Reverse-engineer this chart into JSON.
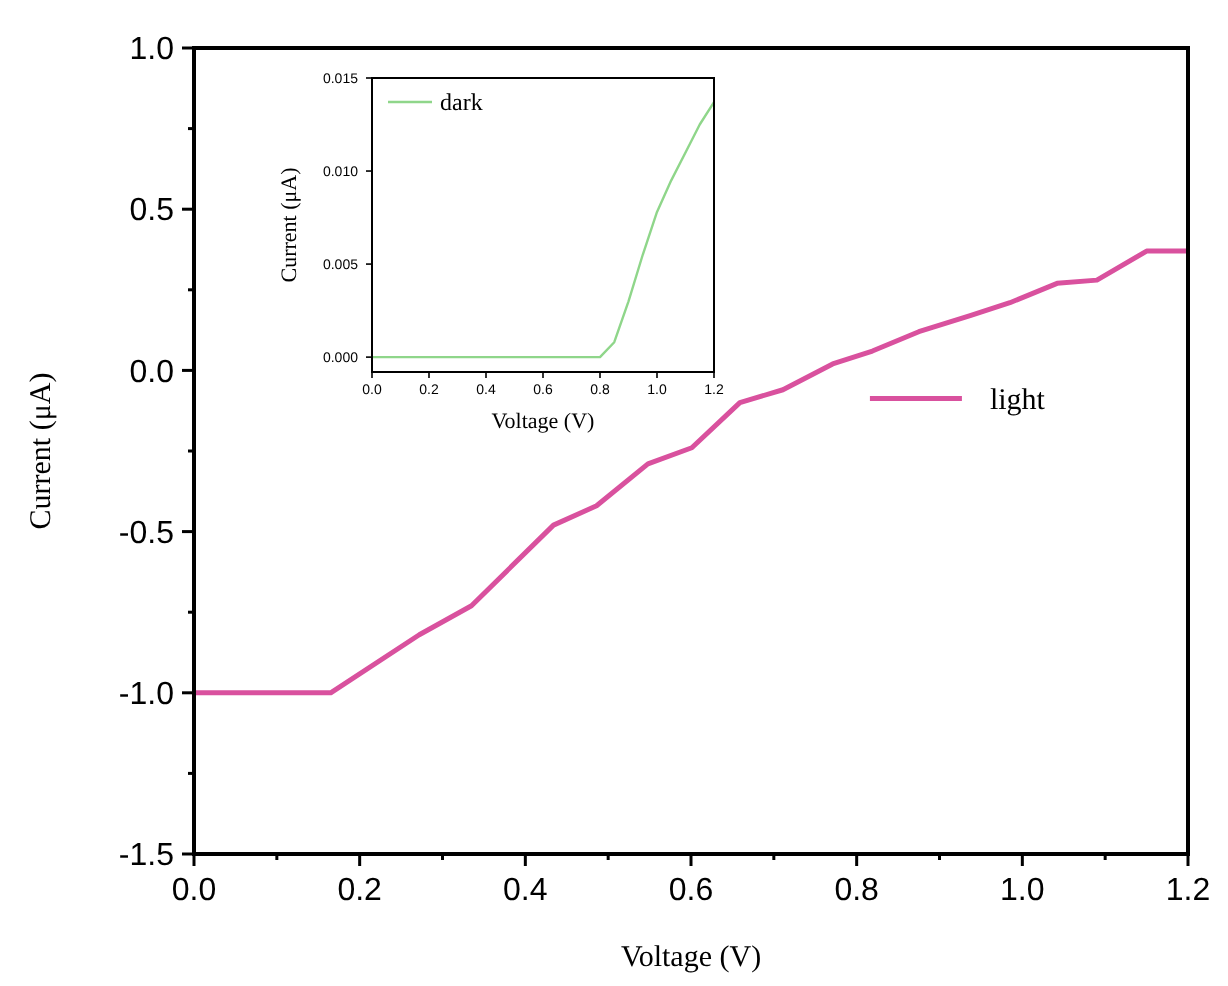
{
  "chart_data": [
    {
      "type": "line",
      "xlabel": "Voltage (V)",
      "ylabel": "Current (μA)",
      "xlim": [
        0,
        1.2
      ],
      "ylim": [
        -1.5,
        1.0
      ],
      "xticks": [
        {
          "value": 0,
          "label": "0.0"
        },
        {
          "value": 0.1,
          "label": null
        },
        {
          "value": 0.2,
          "label": "0.2"
        },
        {
          "value": 0.3,
          "label": null
        },
        {
          "value": 0.4,
          "label": "0.4"
        },
        {
          "value": 0.5,
          "label": null
        },
        {
          "value": 0.6,
          "label": "0.6"
        },
        {
          "value": 0.7,
          "label": null
        },
        {
          "value": 0.8,
          "label": "0.8"
        },
        {
          "value": 0.9,
          "label": null
        },
        {
          "value": 1.0,
          "label": "1.0"
        },
        {
          "value": 1.1,
          "label": null
        },
        {
          "value": 1.2,
          "label": "1.2"
        }
      ],
      "yticks": [
        {
          "value": -1.5,
          "label": "-1.5"
        },
        {
          "value": -1.25,
          "label": null
        },
        {
          "value": -1.0,
          "label": "-1.0"
        },
        {
          "value": -0.75,
          "label": null
        },
        {
          "value": -0.5,
          "label": "-0.5"
        },
        {
          "value": -0.25,
          "label": null
        },
        {
          "value": 0,
          "label": "0.0"
        },
        {
          "value": 0.25,
          "label": null
        },
        {
          "value": 0.5,
          "label": "0.5"
        },
        {
          "value": 0.75,
          "label": null
        },
        {
          "value": 1.0,
          "label": "1.0"
        }
      ],
      "legend": "right",
      "grid": false,
      "series": [
        {
          "name": "light",
          "color": "#d9519e",
          "x": [
            0,
            0.165,
            0.272,
            0.335,
            0.434,
            0.486,
            0.548,
            0.601,
            0.659,
            0.711,
            0.771,
            0.819,
            0.875,
            0.937,
            0.985,
            1.042,
            1.09,
            1.15,
            1.2
          ],
          "values": [
            -1.0,
            -1.0,
            -0.82,
            -0.73,
            -0.48,
            -0.42,
            -0.29,
            -0.24,
            -0.1,
            -0.06,
            0.02,
            0.06,
            0.12,
            0.17,
            0.21,
            0.27,
            0.28,
            0.37,
            0.37
          ]
        }
      ]
    },
    {
      "type": "line",
      "xlabel": "Voltage (V)",
      "ylabel": "Current (μA)",
      "xlim": [
        0,
        1.2
      ],
      "ylim": [
        -0.0008,
        0.015
      ],
      "xticks": [
        {
          "value": 0,
          "label": "0.0"
        },
        {
          "value": 0.2,
          "label": "0.2"
        },
        {
          "value": 0.4,
          "label": "0.4"
        },
        {
          "value": 0.6,
          "label": "0.6"
        },
        {
          "value": 0.8,
          "label": "0.8"
        },
        {
          "value": 1.0,
          "label": "1.0"
        },
        {
          "value": 1.2,
          "label": "1.2"
        }
      ],
      "yticks": [
        {
          "value": 0,
          "label": "0.000"
        },
        {
          "value": 0.005,
          "label": "0.005"
        },
        {
          "value": 0.01,
          "label": "0.010"
        },
        {
          "value": 0.015,
          "label": "0.015"
        }
      ],
      "legend": "top left",
      "grid": false,
      "series": [
        {
          "name": "dark",
          "color": "#8fd68a",
          "x": [
            0,
            0.8,
            0.85,
            0.9,
            0.95,
            1.0,
            1.05,
            1.1,
            1.15,
            1.2
          ],
          "values": [
            0,
            0,
            0.0008,
            0.003,
            0.0055,
            0.0078,
            0.0095,
            0.011,
            0.0125,
            0.0137
          ]
        }
      ]
    }
  ]
}
